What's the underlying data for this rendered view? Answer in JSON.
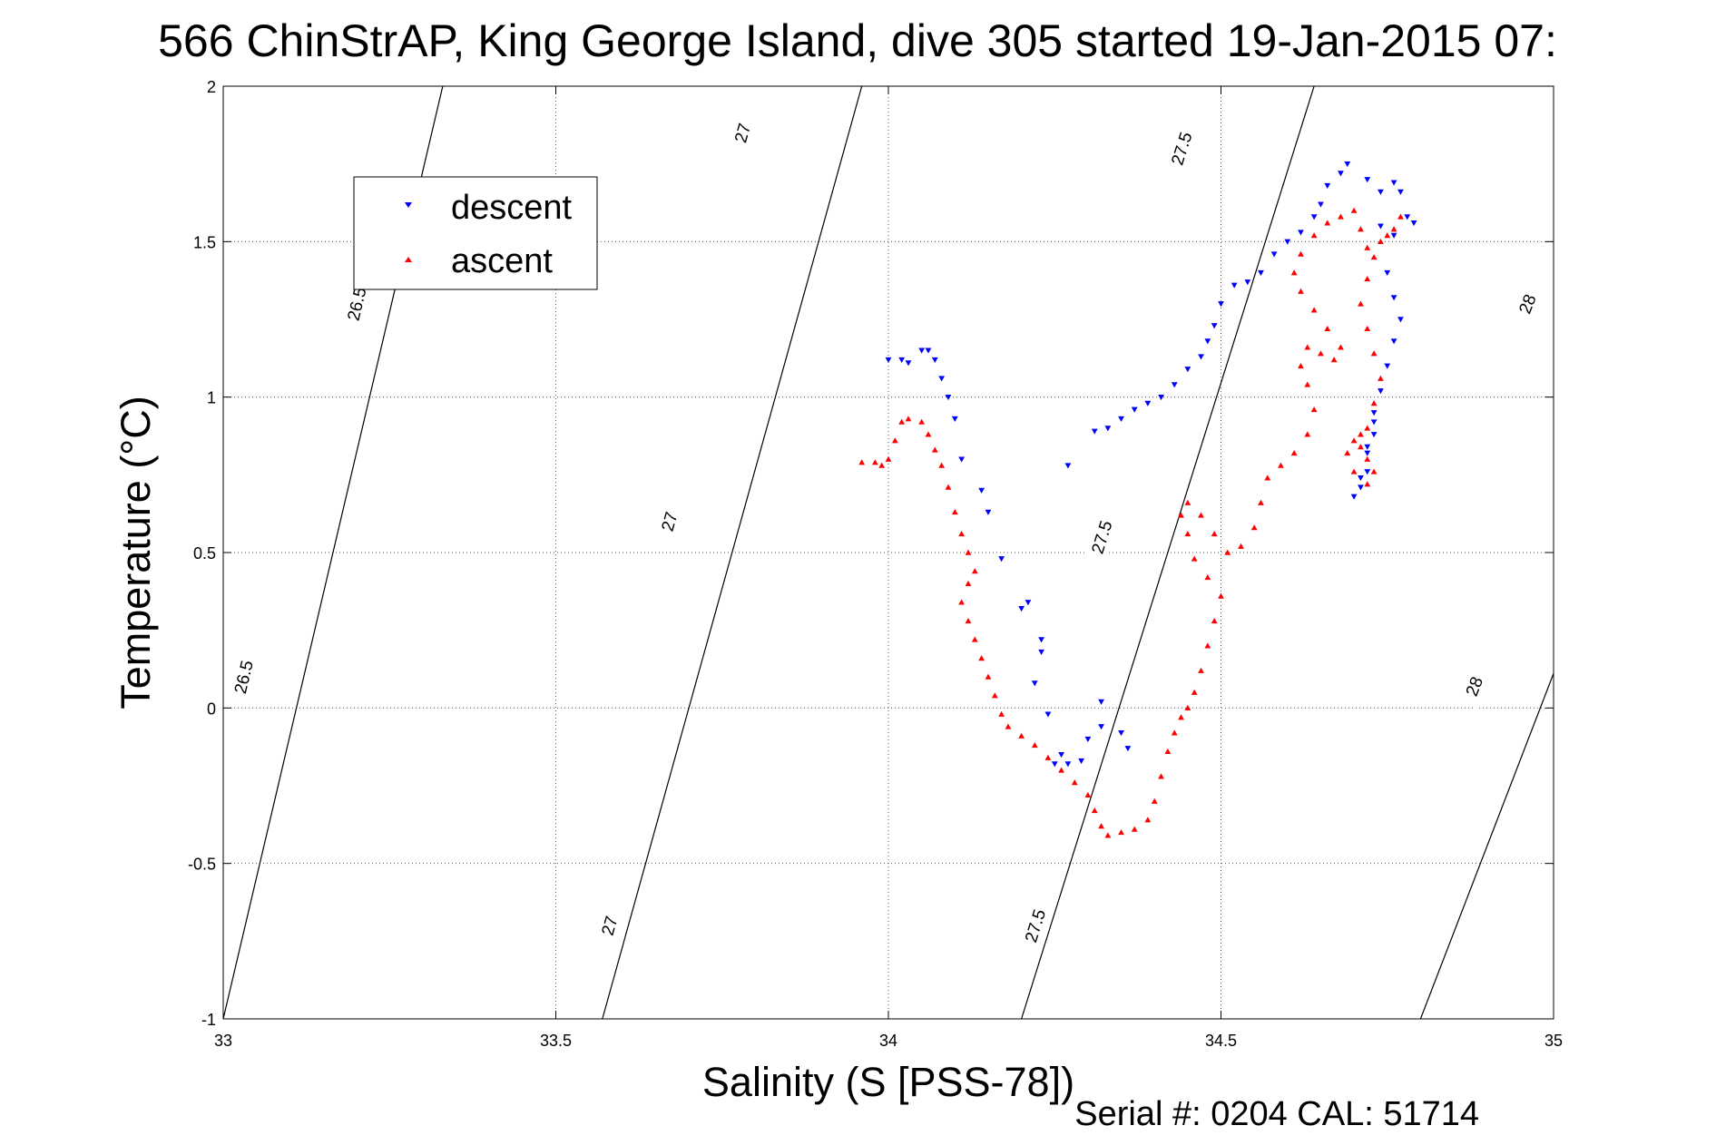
{
  "chart_data": {
    "type": "scatter",
    "title": "566 ChinStrAP, King George Island, dive 305 started 19-Jan-2015 07:",
    "xlabel": "Salinity (S [PSS-78])",
    "ylabel": "Temperature (°C)",
    "xlim": [
      33,
      35
    ],
    "ylim": [
      -1,
      2
    ],
    "xticks": [
      33,
      33.5,
      34,
      34.5,
      35
    ],
    "xtick_labels": [
      "33",
      "33.5",
      "34",
      "34.5",
      "35"
    ],
    "yticks": [
      -1,
      -0.5,
      0,
      0.5,
      1,
      1.5,
      2
    ],
    "ytick_labels": [
      "-1",
      "-0.5",
      "0",
      "0.5",
      "1",
      "1.5",
      "2"
    ],
    "grid": true,
    "legend_position": "top-left",
    "footer": "Serial #: 0204  CAL: 51714",
    "series": [
      {
        "name": "descent",
        "marker": "triangle-down",
        "color": "#0000ff",
        "points": [
          [
            34.0,
            1.12
          ],
          [
            34.02,
            1.12
          ],
          [
            34.03,
            1.11
          ],
          [
            34.05,
            1.15
          ],
          [
            34.06,
            1.15
          ],
          [
            34.07,
            1.12
          ],
          [
            34.08,
            1.06
          ],
          [
            34.09,
            1.0
          ],
          [
            34.1,
            0.93
          ],
          [
            34.11,
            0.8
          ],
          [
            34.14,
            0.7
          ],
          [
            34.15,
            0.63
          ],
          [
            34.17,
            0.48
          ],
          [
            34.2,
            0.32
          ],
          [
            34.21,
            0.34
          ],
          [
            34.23,
            0.22
          ],
          [
            34.23,
            0.18
          ],
          [
            34.22,
            0.08
          ],
          [
            34.24,
            -0.02
          ],
          [
            34.26,
            -0.15
          ],
          [
            34.25,
            -0.18
          ],
          [
            34.27,
            -0.18
          ],
          [
            34.29,
            -0.17
          ],
          [
            34.3,
            -0.1
          ],
          [
            34.32,
            -0.06
          ],
          [
            34.32,
            0.02
          ],
          [
            34.35,
            -0.08
          ],
          [
            34.36,
            -0.13
          ],
          [
            34.27,
            0.78
          ],
          [
            34.31,
            0.89
          ],
          [
            34.33,
            0.9
          ],
          [
            34.35,
            0.93
          ],
          [
            34.37,
            0.96
          ],
          [
            34.39,
            0.98
          ],
          [
            34.41,
            1.0
          ],
          [
            34.43,
            1.04
          ],
          [
            34.45,
            1.09
          ],
          [
            34.47,
            1.13
          ],
          [
            34.48,
            1.18
          ],
          [
            34.49,
            1.23
          ],
          [
            34.5,
            1.3
          ],
          [
            34.52,
            1.36
          ],
          [
            34.54,
            1.37
          ],
          [
            34.56,
            1.4
          ],
          [
            34.58,
            1.46
          ],
          [
            34.6,
            1.5
          ],
          [
            34.62,
            1.53
          ],
          [
            34.64,
            1.58
          ],
          [
            34.65,
            1.62
          ],
          [
            34.66,
            1.68
          ],
          [
            34.68,
            1.72
          ],
          [
            34.69,
            1.75
          ],
          [
            34.72,
            1.7
          ],
          [
            34.74,
            1.66
          ],
          [
            34.76,
            1.69
          ],
          [
            34.77,
            1.66
          ],
          [
            34.78,
            1.58
          ],
          [
            34.79,
            1.56
          ],
          [
            34.76,
            1.52
          ],
          [
            34.74,
            1.55
          ],
          [
            34.75,
            1.4
          ],
          [
            34.76,
            1.32
          ],
          [
            34.77,
            1.25
          ],
          [
            34.76,
            1.18
          ],
          [
            34.75,
            1.1
          ],
          [
            34.74,
            1.02
          ],
          [
            34.73,
            0.95
          ],
          [
            34.73,
            0.88
          ],
          [
            34.72,
            0.82
          ],
          [
            34.72,
            0.76
          ],
          [
            34.71,
            0.71
          ],
          [
            34.7,
            0.68
          ],
          [
            34.71,
            0.74
          ],
          [
            34.72,
            0.84
          ],
          [
            34.73,
            0.92
          ]
        ]
      },
      {
        "name": "ascent",
        "marker": "triangle-up",
        "color": "#ff0000",
        "points": [
          [
            33.96,
            0.79
          ],
          [
            33.98,
            0.79
          ],
          [
            33.99,
            0.78
          ],
          [
            34.0,
            0.8
          ],
          [
            34.01,
            0.86
          ],
          [
            34.02,
            0.92
          ],
          [
            34.03,
            0.93
          ],
          [
            34.05,
            0.92
          ],
          [
            34.06,
            0.88
          ],
          [
            34.07,
            0.83
          ],
          [
            34.08,
            0.78
          ],
          [
            34.09,
            0.71
          ],
          [
            34.1,
            0.63
          ],
          [
            34.11,
            0.56
          ],
          [
            34.12,
            0.5
          ],
          [
            34.13,
            0.44
          ],
          [
            34.12,
            0.4
          ],
          [
            34.11,
            0.34
          ],
          [
            34.12,
            0.28
          ],
          [
            34.13,
            0.22
          ],
          [
            34.14,
            0.16
          ],
          [
            34.15,
            0.1
          ],
          [
            34.16,
            0.04
          ],
          [
            34.17,
            -0.02
          ],
          [
            34.18,
            -0.06
          ],
          [
            34.2,
            -0.09
          ],
          [
            34.22,
            -0.12
          ],
          [
            34.24,
            -0.16
          ],
          [
            34.26,
            -0.2
          ],
          [
            34.28,
            -0.24
          ],
          [
            34.3,
            -0.28
          ],
          [
            34.31,
            -0.33
          ],
          [
            34.32,
            -0.38
          ],
          [
            34.33,
            -0.41
          ],
          [
            34.35,
            -0.4
          ],
          [
            34.37,
            -0.39
          ],
          [
            34.39,
            -0.36
          ],
          [
            34.4,
            -0.3
          ],
          [
            34.41,
            -0.22
          ],
          [
            34.42,
            -0.14
          ],
          [
            34.43,
            -0.08
          ],
          [
            34.44,
            -0.03
          ],
          [
            34.45,
            0.0
          ],
          [
            34.46,
            0.05
          ],
          [
            34.47,
            0.12
          ],
          [
            34.48,
            0.2
          ],
          [
            34.49,
            0.28
          ],
          [
            34.5,
            0.36
          ],
          [
            34.48,
            0.42
          ],
          [
            34.46,
            0.48
          ],
          [
            34.45,
            0.56
          ],
          [
            34.44,
            0.62
          ],
          [
            34.45,
            0.66
          ],
          [
            34.47,
            0.62
          ],
          [
            34.49,
            0.56
          ],
          [
            34.51,
            0.5
          ],
          [
            34.53,
            0.52
          ],
          [
            34.55,
            0.58
          ],
          [
            34.56,
            0.66
          ],
          [
            34.57,
            0.74
          ],
          [
            34.59,
            0.78
          ],
          [
            34.61,
            0.82
          ],
          [
            34.63,
            0.88
          ],
          [
            34.64,
            0.96
          ],
          [
            34.63,
            1.04
          ],
          [
            34.62,
            1.1
          ],
          [
            34.63,
            1.16
          ],
          [
            34.65,
            1.14
          ],
          [
            34.67,
            1.12
          ],
          [
            34.68,
            1.16
          ],
          [
            34.66,
            1.22
          ],
          [
            34.64,
            1.28
          ],
          [
            34.62,
            1.34
          ],
          [
            34.61,
            1.4
          ],
          [
            34.62,
            1.46
          ],
          [
            34.64,
            1.52
          ],
          [
            34.66,
            1.56
          ],
          [
            34.68,
            1.58
          ],
          [
            34.7,
            1.6
          ],
          [
            34.71,
            1.54
          ],
          [
            34.72,
            1.48
          ],
          [
            34.74,
            1.5
          ],
          [
            34.76,
            1.54
          ],
          [
            34.77,
            1.58
          ],
          [
            34.75,
            1.52
          ],
          [
            34.73,
            1.45
          ],
          [
            34.72,
            1.38
          ],
          [
            34.71,
            1.3
          ],
          [
            34.72,
            1.22
          ],
          [
            34.73,
            1.14
          ],
          [
            34.74,
            1.06
          ],
          [
            34.73,
            0.98
          ],
          [
            34.72,
            0.9
          ],
          [
            34.71,
            0.84
          ],
          [
            34.72,
            0.8
          ],
          [
            34.73,
            0.76
          ],
          [
            34.72,
            0.72
          ],
          [
            34.7,
            0.76
          ],
          [
            34.69,
            0.82
          ],
          [
            34.7,
            0.86
          ],
          [
            34.71,
            0.88
          ]
        ]
      }
    ],
    "isopycnals": [
      {
        "sigma": "26.5",
        "x_at_bottom": 33.0,
        "x_at_top": 33.33,
        "labels": [
          [
            33.2,
            1.3
          ],
          [
            33.03,
            0.1
          ]
        ]
      },
      {
        "sigma": "27",
        "x_at_bottom": 33.57,
        "x_at_top": 33.96,
        "labels": [
          [
            33.78,
            1.85
          ],
          [
            33.67,
            0.6
          ],
          [
            33.58,
            -0.7
          ]
        ]
      },
      {
        "sigma": "27.5",
        "x_at_bottom": 34.2,
        "x_at_top": 34.64,
        "labels": [
          [
            34.44,
            1.8
          ],
          [
            34.32,
            0.55
          ],
          [
            34.22,
            -0.7
          ]
        ]
      },
      {
        "sigma": "28",
        "x_at_bottom": 34.8,
        "x_at_top": 35.34,
        "labels": [
          [
            34.96,
            1.3
          ],
          [
            34.88,
            0.07
          ]
        ]
      }
    ]
  },
  "legend": {
    "descent_label": "descent",
    "ascent_label": "ascent"
  },
  "footer": "Serial #: 0204  CAL: 51714"
}
